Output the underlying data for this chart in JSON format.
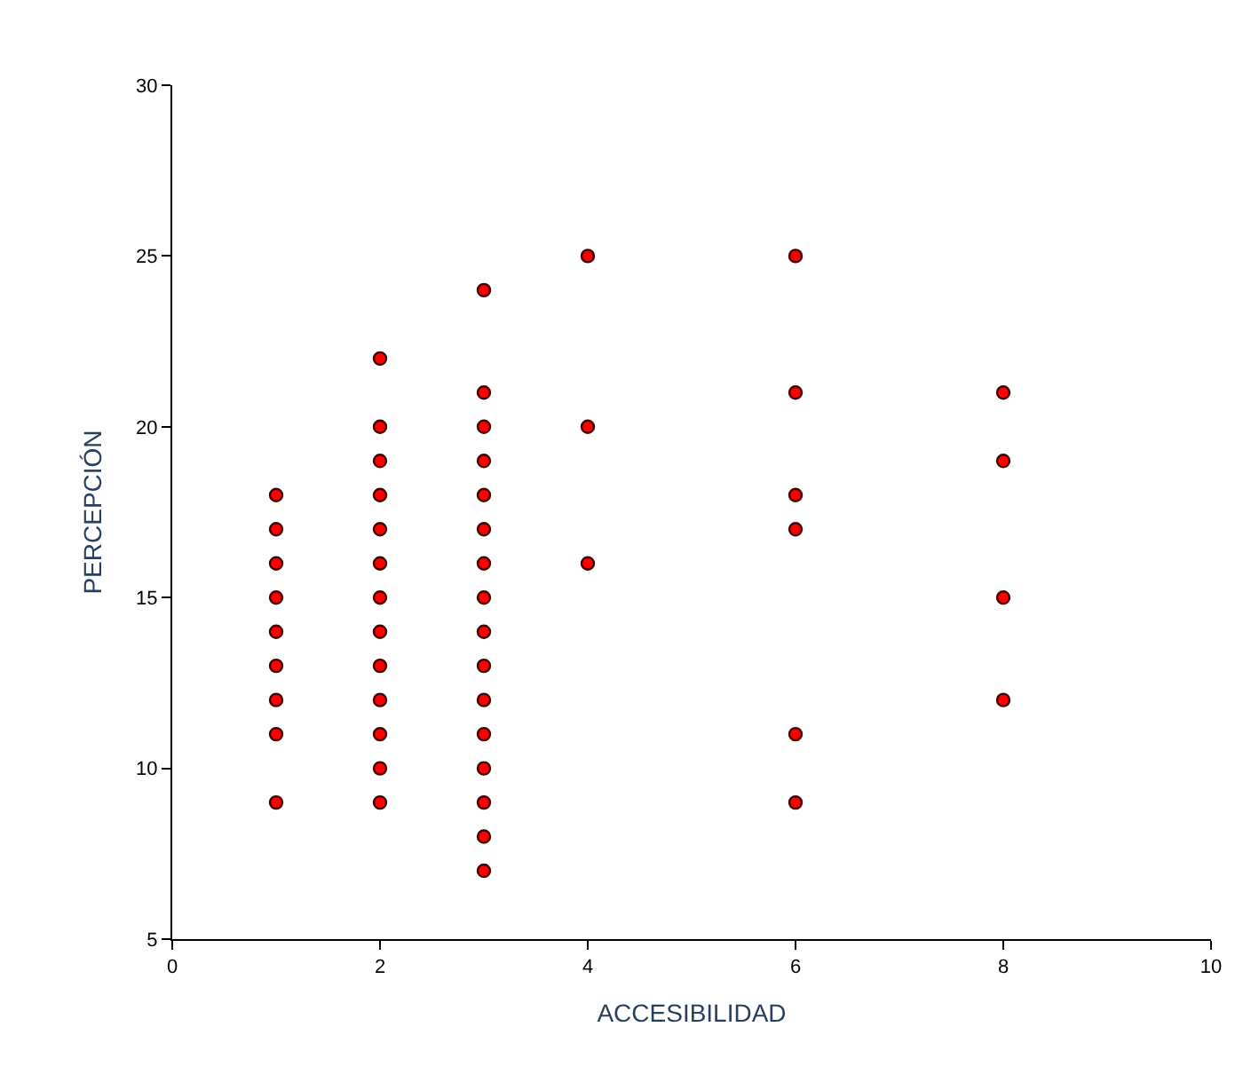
{
  "chart_data": {
    "type": "scatter",
    "xlabel": "ACCESIBILIDAD",
    "ylabel": "PERCEPCIÓN",
    "x": [
      1,
      1,
      1,
      1,
      1,
      1,
      1,
      1,
      1,
      2,
      2,
      2,
      2,
      2,
      2,
      2,
      2,
      2,
      2,
      2,
      2,
      2,
      3,
      3,
      3,
      3,
      3,
      3,
      3,
      3,
      3,
      3,
      3,
      3,
      3,
      3,
      3,
      3,
      4,
      4,
      4,
      6,
      6,
      6,
      6,
      6,
      6,
      8,
      8,
      8,
      8
    ],
    "series": [
      {
        "color": "#ff0000",
        "values": [
          18,
          17,
          16,
          15,
          14,
          13,
          12,
          11,
          9,
          22,
          20,
          19,
          18,
          17,
          16,
          15,
          14,
          13,
          12,
          11,
          10,
          9,
          24,
          21,
          20,
          19,
          18,
          17,
          16,
          15,
          14,
          13,
          12,
          11,
          10,
          9,
          8,
          7,
          25,
          20,
          16,
          25,
          21,
          18,
          17,
          11,
          9,
          21,
          19,
          15,
          12
        ]
      }
    ],
    "xlim": [
      0,
      10
    ],
    "xticks": [
      0,
      2,
      4,
      6,
      8,
      10
    ],
    "ylim": [
      5,
      30
    ],
    "yticks": [
      5,
      10,
      15,
      20,
      25,
      30
    ],
    "marker": "circle",
    "grid": false,
    "legend": false
  }
}
